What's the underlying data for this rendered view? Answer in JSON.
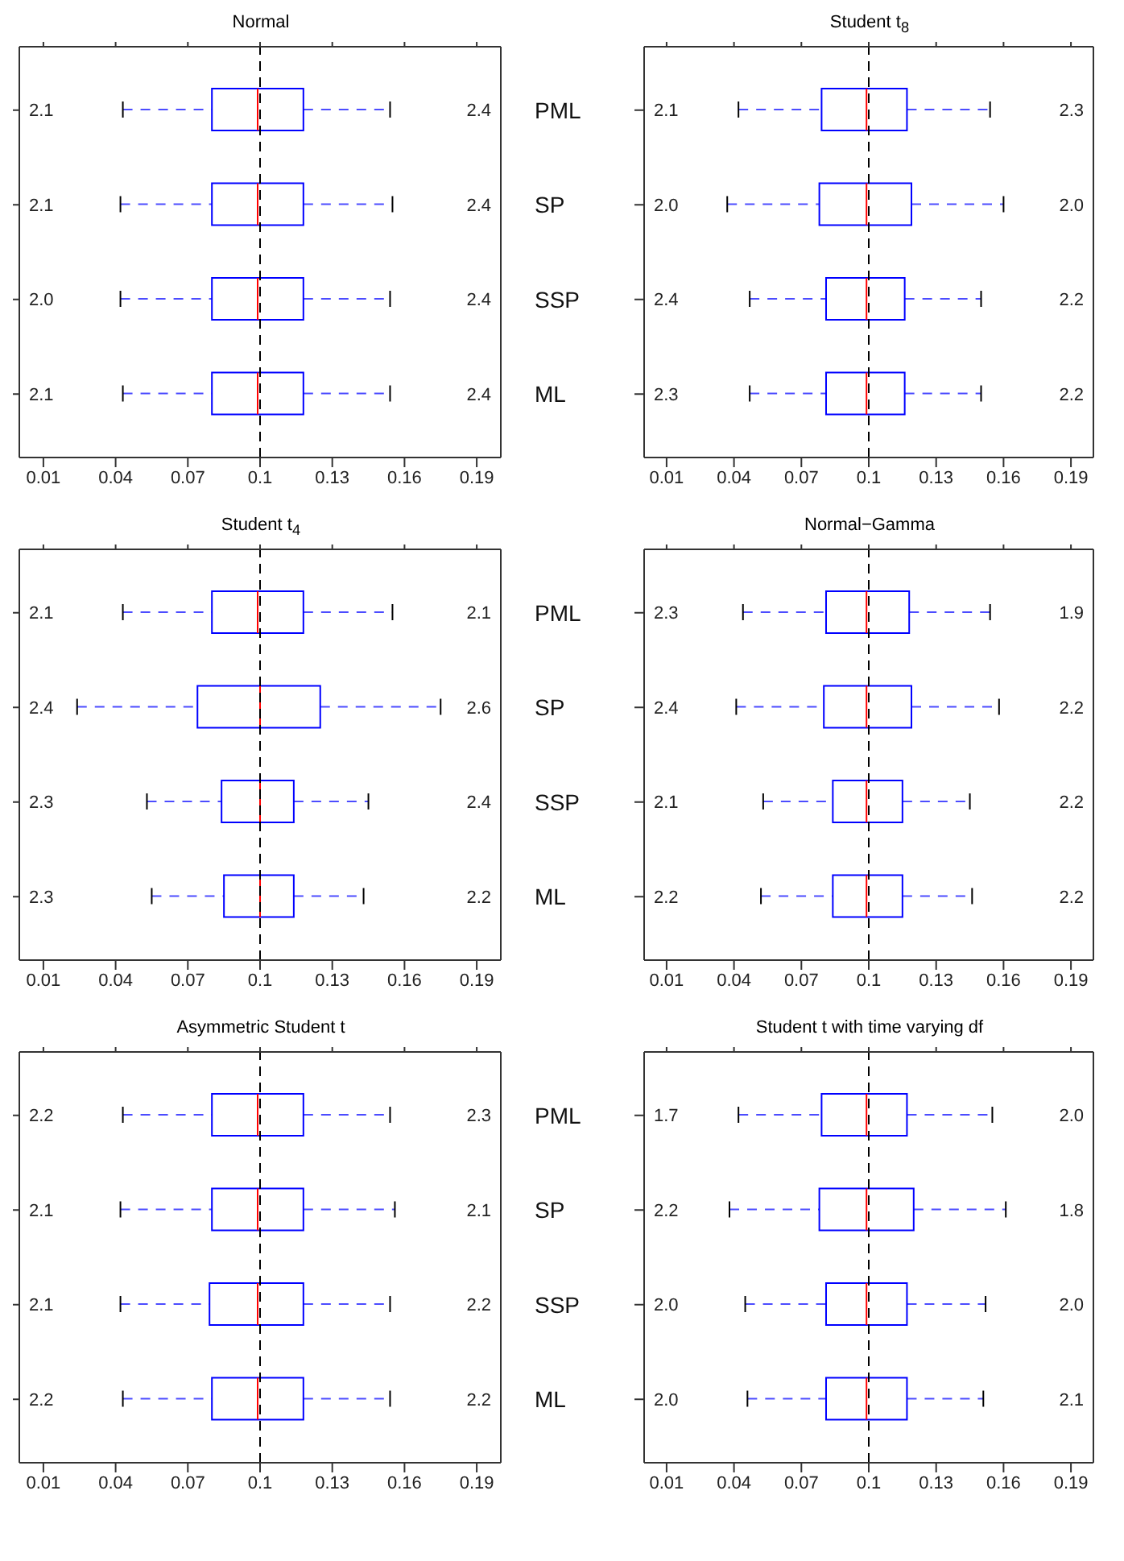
{
  "chart_data": [
    {
      "type": "box",
      "title": "Normal",
      "orientation": "horizontal",
      "color": "#0000ff",
      "categories": [
        null,
        null,
        null,
        null
      ],
      "boxes": [
        {
          "low": 0.043,
          "q1": 0.08,
          "median": 0.099,
          "q3": 0.118,
          "high": 0.154
        },
        {
          "low": 0.042,
          "q1": 0.08,
          "median": 0.099,
          "q3": 0.118,
          "high": 0.155
        },
        {
          "low": 0.042,
          "q1": 0.08,
          "median": 0.099,
          "q3": 0.118,
          "high": 0.154
        },
        {
          "low": 0.043,
          "q1": 0.08,
          "median": 0.099,
          "q3": 0.118,
          "high": 0.154
        }
      ],
      "xlim": [
        0,
        0.2
      ],
      "xticks": [
        0.01,
        0.04,
        0.07,
        0.1,
        0.13,
        0.16,
        0.19
      ],
      "ref_lines": [
        {
          "axis": "x",
          "value": 0.1,
          "color": "#000000",
          "line_style": "dashed"
        }
      ],
      "annotations": [
        "2.1",
        "2.4",
        "2.1",
        "2.4",
        "2.0",
        "2.4",
        "2.1",
        "2.4"
      ]
    },
    {
      "type": "box",
      "title": "Student t$_{8}$",
      "orientation": "horizontal",
      "color": "#0000ff",
      "categories": [
        "PML",
        "SP",
        "SSP",
        "ML"
      ],
      "boxes": [
        {
          "low": 0.042,
          "q1": 0.079,
          "median": 0.099,
          "q3": 0.117,
          "high": 0.154
        },
        {
          "low": 0.037,
          "q1": 0.078,
          "median": 0.099,
          "q3": 0.119,
          "high": 0.16
        },
        {
          "low": 0.047,
          "q1": 0.081,
          "median": 0.099,
          "q3": 0.116,
          "high": 0.15
        },
        {
          "low": 0.047,
          "q1": 0.081,
          "median": 0.099,
          "q3": 0.116,
          "high": 0.15
        }
      ],
      "xlim": [
        0,
        0.2
      ],
      "xticks": [
        0.01,
        0.04,
        0.07,
        0.1,
        0.13,
        0.16,
        0.19
      ],
      "ref_lines": [
        {
          "axis": "x",
          "value": 0.1,
          "color": "#000000",
          "line_style": "dashed"
        }
      ],
      "annotations": [
        "2.1",
        "2.3",
        "2.0",
        "2.0",
        "2.4",
        "2.2",
        "2.3",
        "2.2"
      ]
    },
    {
      "type": "box",
      "title": "Student t$_{4}$",
      "orientation": "horizontal",
      "color": "#0000ff",
      "categories": [
        null,
        null,
        null,
        null
      ],
      "boxes": [
        {
          "low": 0.043,
          "q1": 0.08,
          "median": 0.099,
          "q3": 0.118,
          "high": 0.155
        },
        {
          "low": 0.024,
          "q1": 0.074,
          "median": 0.1,
          "q3": 0.125,
          "high": 0.175
        },
        {
          "low": 0.053,
          "q1": 0.084,
          "median": 0.1,
          "q3": 0.114,
          "high": 0.145
        },
        {
          "low": 0.055,
          "q1": 0.085,
          "median": 0.1,
          "q3": 0.114,
          "high": 0.143
        }
      ],
      "xlim": [
        0,
        0.2
      ],
      "xticks": [
        0.01,
        0.04,
        0.07,
        0.1,
        0.13,
        0.16,
        0.19
      ],
      "ref_lines": [
        {
          "axis": "x",
          "value": 0.1,
          "color": "#000000",
          "line_style": "dashed"
        }
      ],
      "annotations": [
        "2.1",
        "2.1",
        "2.4",
        "2.6",
        "2.3",
        "2.4",
        "2.3",
        "2.2"
      ]
    },
    {
      "type": "box",
      "title": "Normal−Gamma",
      "orientation": "horizontal",
      "color": "#0000ff",
      "categories": [
        "PML",
        "SP",
        "SSP",
        "ML"
      ],
      "boxes": [
        {
          "low": 0.044,
          "q1": 0.081,
          "median": 0.099,
          "q3": 0.118,
          "high": 0.154
        },
        {
          "low": 0.041,
          "q1": 0.08,
          "median": 0.099,
          "q3": 0.119,
          "high": 0.158
        },
        {
          "low": 0.053,
          "q1": 0.084,
          "median": 0.099,
          "q3": 0.115,
          "high": 0.145
        },
        {
          "low": 0.052,
          "q1": 0.084,
          "median": 0.099,
          "q3": 0.115,
          "high": 0.146
        }
      ],
      "xlim": [
        0,
        0.2
      ],
      "xticks": [
        0.01,
        0.04,
        0.07,
        0.1,
        0.13,
        0.16,
        0.19
      ],
      "ref_lines": [
        {
          "axis": "x",
          "value": 0.1,
          "color": "#000000",
          "line_style": "dashed"
        }
      ],
      "annotations": [
        "2.3",
        "1.9",
        "2.4",
        "2.2",
        "2.1",
        "2.2",
        "2.2",
        "2.2"
      ]
    },
    {
      "type": "box",
      "title": "Asymmetric Student t",
      "orientation": "horizontal",
      "color": "#0000ff",
      "categories": [
        null,
        null,
        null,
        null
      ],
      "boxes": [
        {
          "low": 0.043,
          "q1": 0.08,
          "median": 0.099,
          "q3": 0.118,
          "high": 0.154
        },
        {
          "low": 0.042,
          "q1": 0.08,
          "median": 0.099,
          "q3": 0.118,
          "high": 0.156
        },
        {
          "low": 0.042,
          "q1": 0.079,
          "median": 0.099,
          "q3": 0.118,
          "high": 0.154
        },
        {
          "low": 0.043,
          "q1": 0.08,
          "median": 0.099,
          "q3": 0.118,
          "high": 0.154
        }
      ],
      "xlim": [
        0,
        0.2
      ],
      "xticks": [
        0.01,
        0.04,
        0.07,
        0.1,
        0.13,
        0.16,
        0.19
      ],
      "ref_lines": [
        {
          "axis": "x",
          "value": 0.1,
          "color": "#000000",
          "line_style": "dashed"
        }
      ],
      "annotations": [
        "2.2",
        "2.3",
        "2.1",
        "2.1",
        "2.1",
        "2.2",
        "2.2",
        "2.2"
      ]
    },
    {
      "type": "box",
      "title": "Student t with time varying df",
      "orientation": "horizontal",
      "color": "#0000ff",
      "categories": [
        "PML",
        "SP",
        "SSP",
        "ML"
      ],
      "boxes": [
        {
          "low": 0.042,
          "q1": 0.079,
          "median": 0.099,
          "q3": 0.117,
          "high": 0.155
        },
        {
          "low": 0.038,
          "q1": 0.078,
          "median": 0.099,
          "q3": 0.12,
          "high": 0.161
        },
        {
          "low": 0.045,
          "q1": 0.081,
          "median": 0.099,
          "q3": 0.117,
          "high": 0.152
        },
        {
          "low": 0.046,
          "q1": 0.081,
          "median": 0.099,
          "q3": 0.117,
          "high": 0.151
        }
      ],
      "xlim": [
        0,
        0.2
      ],
      "xticks": [
        0.01,
        0.04,
        0.07,
        0.1,
        0.13,
        0.16,
        0.19
      ],
      "ref_lines": [
        {
          "axis": "x",
          "value": 0.1,
          "color": "#000000",
          "line_style": "dashed"
        }
      ],
      "annotations": [
        "1.7",
        "2.0",
        "2.2",
        "1.8",
        "2.0",
        "2.0",
        "2.0",
        "2.1"
      ]
    }
  ]
}
